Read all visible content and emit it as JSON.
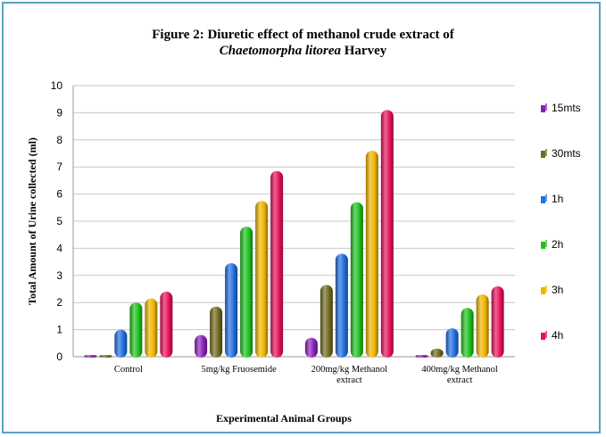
{
  "chart_data": {
    "type": "bar",
    "title": "Figure 2: Diuretic effect of methanol crude extract of",
    "subtitle_italic": "Chaetomorpha litorea",
    "subtitle_rest": " Harvey",
    "xlabel": "Experimental  Animal Groups",
    "ylabel": "Total Amount of Urine collected (ml)",
    "ylim": [
      0,
      10
    ],
    "yticks": [
      "0",
      "1",
      "2",
      "3",
      "4",
      "5",
      "6",
      "7",
      "8",
      "9",
      "10"
    ],
    "categories": [
      [
        "Control"
      ],
      [
        "5mg/kg Fruosemide"
      ],
      [
        "200mg/kg Methanol",
        "extract"
      ],
      [
        "400mg/kg Methanol",
        "extract"
      ]
    ],
    "legend_position": "right",
    "grid": true,
    "series": [
      {
        "name": "15mts",
        "color": "#8a1fb8",
        "values": [
          0,
          0.8,
          0.7,
          0
        ]
      },
      {
        "name": "30mts",
        "color": "#6f6a1c",
        "values": [
          0,
          1.85,
          2.65,
          0.3
        ]
      },
      {
        "name": "1h",
        "color": "#1f6fe0",
        "values": [
          1.0,
          3.45,
          3.8,
          1.05
        ]
      },
      {
        "name": "2h",
        "color": "#1ec21e",
        "values": [
          2.0,
          4.8,
          5.7,
          1.8
        ]
      },
      {
        "name": "3h",
        "color": "#f0b400",
        "values": [
          2.15,
          5.75,
          7.6,
          2.3
        ]
      },
      {
        "name": "4h",
        "color": "#e8105a",
        "values": [
          2.4,
          6.85,
          9.1,
          2.6
        ]
      }
    ]
  }
}
